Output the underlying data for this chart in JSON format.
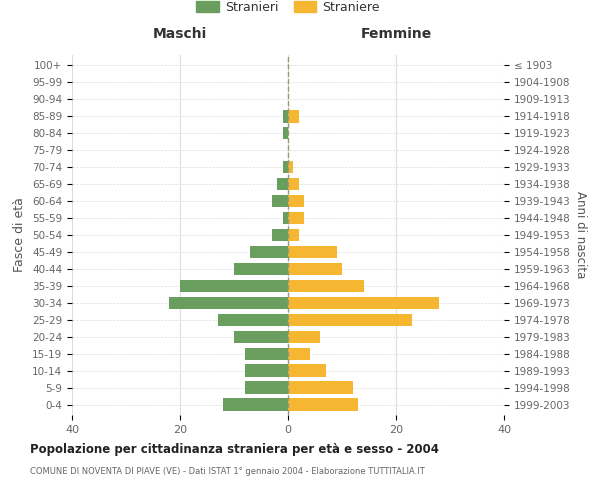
{
  "age_groups": [
    "0-4",
    "5-9",
    "10-14",
    "15-19",
    "20-24",
    "25-29",
    "30-34",
    "35-39",
    "40-44",
    "45-49",
    "50-54",
    "55-59",
    "60-64",
    "65-69",
    "70-74",
    "75-79",
    "80-84",
    "85-89",
    "90-94",
    "95-99",
    "100+"
  ],
  "birth_years": [
    "1999-2003",
    "1994-1998",
    "1989-1993",
    "1984-1988",
    "1979-1983",
    "1974-1978",
    "1969-1973",
    "1964-1968",
    "1959-1963",
    "1954-1958",
    "1949-1953",
    "1944-1948",
    "1939-1943",
    "1934-1938",
    "1929-1933",
    "1924-1928",
    "1919-1923",
    "1914-1918",
    "1909-1913",
    "1904-1908",
    "≤ 1903"
  ],
  "maschi": [
    12,
    8,
    8,
    8,
    10,
    13,
    22,
    20,
    10,
    7,
    3,
    1,
    3,
    2,
    1,
    0,
    1,
    1,
    0,
    0,
    0
  ],
  "femmine": [
    13,
    12,
    7,
    4,
    6,
    23,
    28,
    14,
    10,
    9,
    2,
    3,
    3,
    2,
    1,
    0,
    0,
    2,
    0,
    0,
    0
  ],
  "color_maschi": "#6a9e5e",
  "color_femmine": "#f5b731",
  "title_main": "Popolazione per cittadinanza straniera per età e sesso - 2004",
  "title_sub": "COMUNE DI NOVENTA DI PIAVE (VE) - Dati ISTAT 1° gennaio 2004 - Elaborazione TUTTITALIA.IT",
  "ylabel_left": "Fasce di età",
  "ylabel_right": "Anni di nascita",
  "xlabel_maschi": "Maschi",
  "xlabel_femmine": "Femmine",
  "legend_maschi": "Stranieri",
  "legend_femmine": "Straniere",
  "xlim": 40,
  "background_color": "#ffffff",
  "grid_color": "#dddddd"
}
